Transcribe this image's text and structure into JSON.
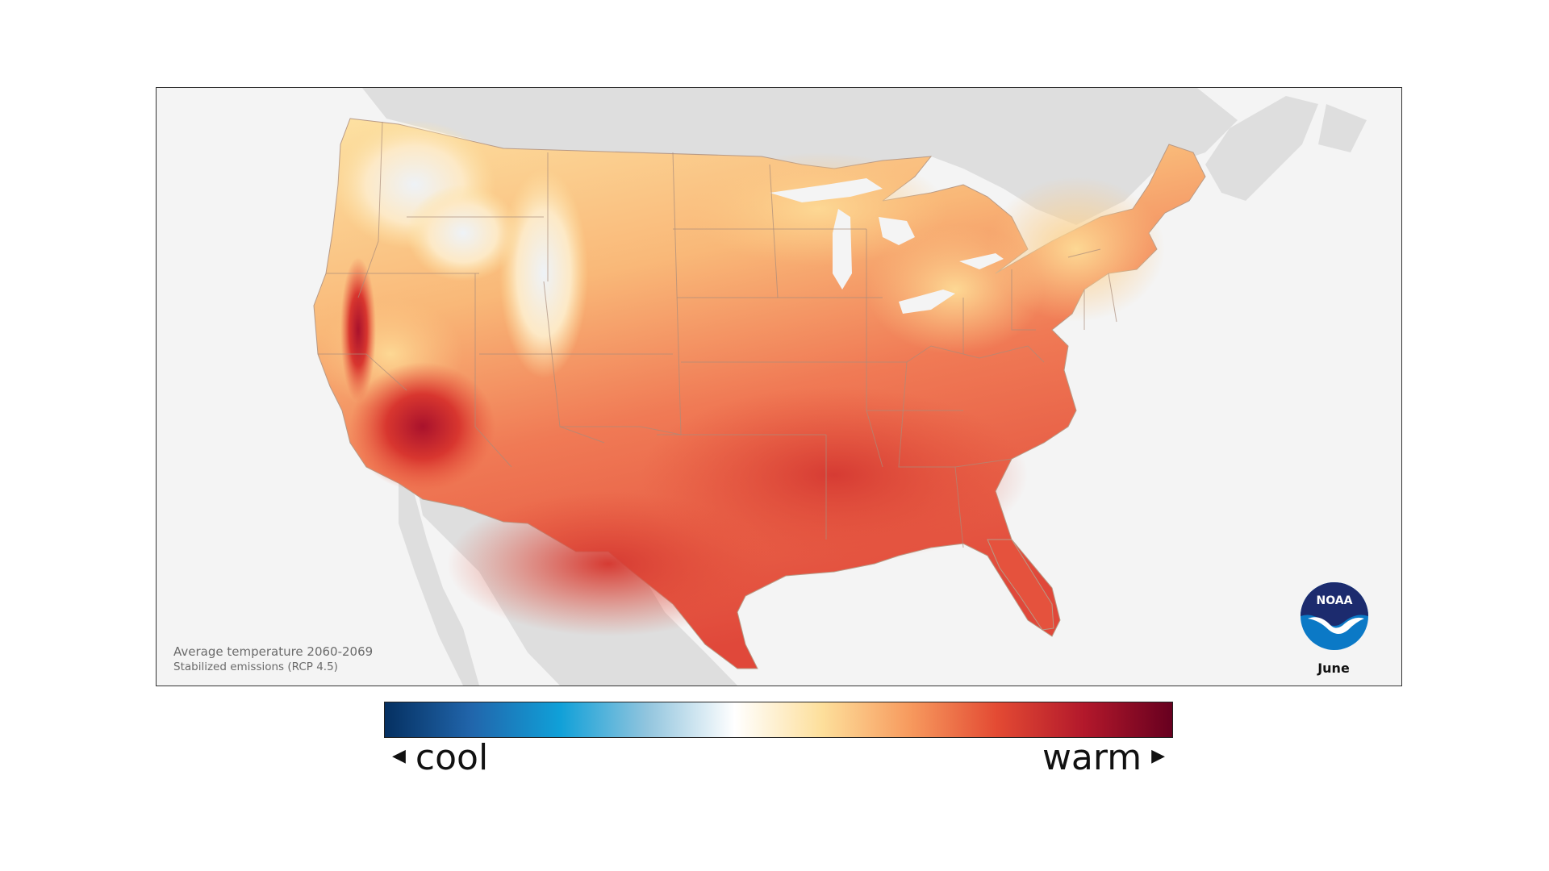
{
  "map": {
    "caption_title": "Average temperature 2060-2069",
    "caption_subtitle": "Stabilized emissions (RCP 4.5)",
    "month": "June",
    "logo_text": "NOAA"
  },
  "legend": {
    "cool_label": "cool",
    "warm_label": "warm",
    "colors": [
      "#053061",
      "#2166ac",
      "#10a0d8",
      "#92c5de",
      "#ffffff",
      "#fddf9b",
      "#f79a5e",
      "#e34a33",
      "#b2182b",
      "#67001f"
    ]
  },
  "colors": {
    "land_neighbors": "#dedede",
    "water": "#f4f4f4",
    "state_borders": "#a98c7a"
  }
}
